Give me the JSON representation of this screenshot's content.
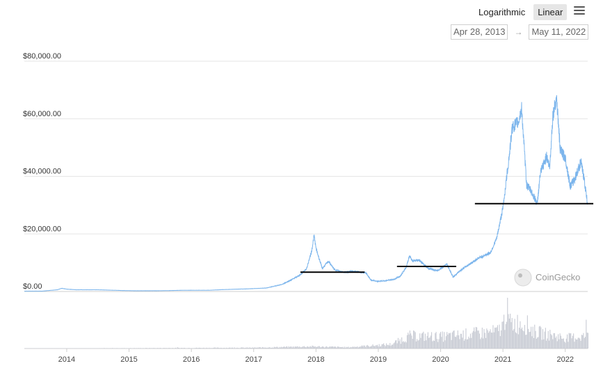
{
  "controls": {
    "scale_log_label": "Logarithmic",
    "scale_linear_label": "Linear",
    "active_scale": "Linear",
    "menu_icon": "hamburger-menu-icon",
    "range_from": "Apr 28, 2013",
    "range_arrow": "→",
    "range_to": "May 11, 2022"
  },
  "watermark": {
    "text": "CoinGecko",
    "icon": "coingecko-logo-icon"
  },
  "colors": {
    "line": "#7cb5ec",
    "volume": "#c8cbd4",
    "grid": "#e6e6e6",
    "annotation": "#000000"
  },
  "chart_data": {
    "type": "line",
    "title": "",
    "xlabel": "",
    "ylabel": "",
    "x_tick_labels": [
      "2014",
      "2015",
      "2016",
      "2017",
      "2018",
      "2019",
      "2020",
      "2021",
      "2022"
    ],
    "y_tick_labels": [
      "$0.00",
      "$20,000.00",
      "$40,000.00",
      "$60,000.00",
      "$80,000.00"
    ],
    "y_tick_values": [
      0,
      20000,
      40000,
      60000,
      80000
    ],
    "ylim": [
      0,
      80000
    ],
    "xlim": [
      2013.32,
      2022.36
    ],
    "grid": true,
    "series": [
      {
        "values_xy": [
          [
            2013.32,
            130
          ],
          [
            2013.6,
            110
          ],
          [
            2013.85,
            600
          ],
          [
            2013.92,
            1100
          ],
          [
            2014.0,
            800
          ],
          [
            2014.15,
            600
          ],
          [
            2014.5,
            600
          ],
          [
            2014.9,
            330
          ],
          [
            2015.1,
            250
          ],
          [
            2015.5,
            260
          ],
          [
            2015.9,
            430
          ],
          [
            2016.3,
            440
          ],
          [
            2016.5,
            650
          ],
          [
            2016.9,
            900
          ],
          [
            2017.2,
            1200
          ],
          [
            2017.45,
            2400
          ],
          [
            2017.6,
            4000
          ],
          [
            2017.75,
            5800
          ],
          [
            2017.85,
            8000
          ],
          [
            2017.93,
            14000
          ],
          [
            2017.97,
            19500
          ],
          [
            2018.0,
            15000
          ],
          [
            2018.05,
            11500
          ],
          [
            2018.1,
            8000
          ],
          [
            2018.2,
            10500
          ],
          [
            2018.3,
            7500
          ],
          [
            2018.45,
            6700
          ],
          [
            2018.6,
            7000
          ],
          [
            2018.8,
            6500
          ],
          [
            2018.88,
            4000
          ],
          [
            2018.98,
            3500
          ],
          [
            2019.1,
            3700
          ],
          [
            2019.25,
            4200
          ],
          [
            2019.35,
            5300
          ],
          [
            2019.45,
            8500
          ],
          [
            2019.5,
            12500
          ],
          [
            2019.55,
            10500
          ],
          [
            2019.65,
            11000
          ],
          [
            2019.8,
            8000
          ],
          [
            2019.95,
            7200
          ],
          [
            2020.1,
            9500
          ],
          [
            2020.2,
            5000
          ],
          [
            2020.3,
            7000
          ],
          [
            2020.45,
            9300
          ],
          [
            2020.6,
            11500
          ],
          [
            2020.8,
            13500
          ],
          [
            2020.9,
            18500
          ],
          [
            2021.0,
            29000
          ],
          [
            2021.05,
            38000
          ],
          [
            2021.1,
            47000
          ],
          [
            2021.15,
            57000
          ],
          [
            2021.25,
            59000
          ],
          [
            2021.3,
            63500
          ],
          [
            2021.38,
            37000
          ],
          [
            2021.45,
            35000
          ],
          [
            2021.55,
            30500
          ],
          [
            2021.6,
            41000
          ],
          [
            2021.7,
            47000
          ],
          [
            2021.75,
            43000
          ],
          [
            2021.8,
            61000
          ],
          [
            2021.86,
            67500
          ],
          [
            2021.92,
            49000
          ],
          [
            2022.0,
            46500
          ],
          [
            2022.08,
            36500
          ],
          [
            2022.15,
            39000
          ],
          [
            2022.25,
            45000
          ],
          [
            2022.3,
            39500
          ],
          [
            2022.36,
            30000
          ]
        ]
      }
    ],
    "volume_relative": [
      [
        2013.32,
        0.0
      ],
      [
        2017.0,
        0.02
      ],
      [
        2017.9,
        0.05
      ],
      [
        2018.5,
        0.03
      ],
      [
        2019.2,
        0.1
      ],
      [
        2019.5,
        0.3
      ],
      [
        2020.0,
        0.28
      ],
      [
        2020.5,
        0.35
      ],
      [
        2020.9,
        0.4
      ],
      [
        2021.0,
        0.55
      ],
      [
        2021.05,
        1.0
      ],
      [
        2021.1,
        0.6
      ],
      [
        2021.35,
        0.6
      ],
      [
        2021.5,
        0.4
      ],
      [
        2022.0,
        0.25
      ],
      [
        2022.36,
        0.3
      ]
    ],
    "annotations": [
      {
        "type": "horizontal_line",
        "x_start": 2017.75,
        "x_end": 2018.78,
        "y": 6700
      },
      {
        "type": "horizontal_line",
        "x_start": 2019.3,
        "x_end": 2020.25,
        "y": 8700
      },
      {
        "type": "horizontal_line",
        "x_start": 2020.55,
        "x_end": 2022.45,
        "y": 30500
      }
    ]
  }
}
